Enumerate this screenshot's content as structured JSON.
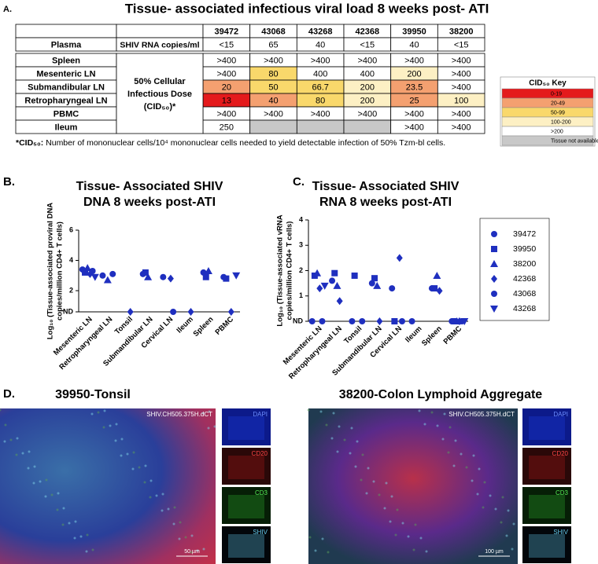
{
  "panel_a": {
    "label": "A.",
    "title": "Tissue- associated infectious viral load 8 weeks post- ATI",
    "table": {
      "header": [
        "39472",
        "43068",
        "43268",
        "42368",
        "39950",
        "38200"
      ],
      "plasma": {
        "tissue": "Plasma",
        "measure": "SHIV RNA copies/ml",
        "cells": [
          "<15",
          "65",
          "40",
          "<15",
          "40",
          "<15"
        ]
      },
      "measure": "50% Cellular Infectious Dose (CID₅₀)*",
      "rows": [
        {
          "tissue": "Spleen",
          "cells": [
            ">400",
            ">400",
            ">400",
            ">400",
            ">400",
            ">400"
          ],
          "colors": [
            "#ffffff",
            "#ffffff",
            "#ffffff",
            "#ffffff",
            "#ffffff",
            "#ffffff"
          ]
        },
        {
          "tissue": "Mesenteric LN",
          "cells": [
            ">400",
            "80",
            "400",
            "400",
            "200",
            ">400"
          ],
          "colors": [
            "#ffffff",
            "#f9d86b",
            "#ffffff",
            "#ffffff",
            "#fdf0c4",
            "#ffffff"
          ]
        },
        {
          "tissue": "Submandibular LN",
          "cells": [
            "20",
            "50",
            "66.7",
            "200",
            "23.5",
            ">400"
          ],
          "colors": [
            "#f4a070",
            "#f9d86b",
            "#f9d86b",
            "#fdf0c4",
            "#f4a070",
            "#ffffff"
          ]
        },
        {
          "tissue": "Retropharyngeal LN",
          "cells": [
            "13",
            "40",
            "80",
            "200",
            "25",
            "100"
          ],
          "colors": [
            "#e41a1c",
            "#f4a070",
            "#f9d86b",
            "#fdf0c4",
            "#f4a070",
            "#fdf0c4"
          ]
        },
        {
          "tissue": "PBMC",
          "cells": [
            ">400",
            ">400",
            ">400",
            ">400",
            ">400",
            ">400"
          ],
          "colors": [
            "#ffffff",
            "#ffffff",
            "#ffffff",
            "#ffffff",
            "#ffffff",
            "#ffffff"
          ]
        },
        {
          "tissue": "Ileum",
          "cells": [
            "250",
            null,
            null,
            null,
            ">400",
            ">400"
          ],
          "colors": [
            "#ffffff",
            "#c8c8c8",
            "#c8c8c8",
            "#c8c8c8",
            "#ffffff",
            "#ffffff"
          ]
        }
      ]
    },
    "footnote_term": "*CID₅₀:",
    "footnote": "Number of mononuclear cells/10⁴ mononuclear cells needed to yield detectable infection of 50% Tzm-bl cells.",
    "key": {
      "title": "CID₅₀ Key",
      "entries": [
        "0-19",
        "20-49",
        "50-99",
        "100-200",
        ">200",
        "Tissue not available"
      ],
      "colors": [
        "#e41a1c",
        "#f4a070",
        "#f9d86b",
        "#fdf0c4",
        "#ffffff",
        "#c8c8c8"
      ]
    }
  },
  "chart_data": [
    {
      "type": "scatter",
      "label": "B.",
      "title": [
        "Tissue- Associated SHIV",
        "DNA 8 weeks post-ATI"
      ],
      "ylabel": [
        "Log₁₀ (Tissue-associated proviral DNA",
        "copies/million CD4+ T cells)"
      ],
      "categories": [
        "Mesenteric LN",
        "Retropharyngeal LN",
        "Tonsil",
        "Submandibular LN",
        "Cervical LN",
        "Ileum",
        "Spleen",
        "PBMC"
      ],
      "ylim": [
        0.6,
        6
      ],
      "yticks": [
        {
          "value": 0.6,
          "label": "ND"
        },
        2,
        4,
        6
      ],
      "series": [
        {
          "name": "39472",
          "color": "#1f2fbf",
          "marker": "circle",
          "values": [
            3.4,
            3.0,
            null,
            3.1,
            2.9,
            null,
            3.2,
            2.9
          ]
        },
        {
          "name": "39950",
          "color": "#1f2fbf",
          "marker": "square",
          "values": [
            3.2,
            null,
            null,
            3.2,
            null,
            null,
            2.9,
            2.8
          ]
        },
        {
          "name": "38200",
          "color": "#1f2fbf",
          "marker": "triangle",
          "values": [
            3.5,
            2.7,
            null,
            2.9,
            null,
            null,
            3.3,
            null
          ]
        },
        {
          "name": "42368",
          "color": "#1f2fbf",
          "marker": "diamond",
          "values": [
            3.1,
            null,
            0.6,
            null,
            2.8,
            0.6,
            null,
            0.6
          ]
        },
        {
          "name": "43068",
          "color": "#1f2fbf",
          "marker": "circle",
          "values": [
            3.3,
            3.1,
            null,
            null,
            0.6,
            null,
            null,
            null
          ]
        },
        {
          "name": "43268",
          "color": "#1f2fbf",
          "marker": "triangle-down",
          "values": [
            2.9,
            null,
            null,
            null,
            null,
            null,
            null,
            3.0
          ]
        }
      ]
    },
    {
      "type": "scatter",
      "label": "C.",
      "title": [
        "Tissue- Associated SHIV",
        "RNA 8 weeks post-ATI"
      ],
      "ylabel": [
        "Log₁₀ (Tissue-associated vRNA",
        "copies/million CD4+ T cells)"
      ],
      "categories": [
        "Mesenteric LN",
        "Retropharyngeal LN",
        "Tonsil",
        "Submandibular LN",
        "Cervical LN",
        "Ileum",
        "Spleen",
        "PBMC"
      ],
      "ylim": [
        0,
        4
      ],
      "yticks": [
        {
          "value": 0,
          "label": "ND"
        },
        1,
        2,
        3,
        4
      ],
      "legend": true,
      "series": [
        {
          "name": "39472",
          "color": "#1f2fbf",
          "marker": "circle",
          "values": [
            0,
            1.6,
            0,
            1.5,
            1.3,
            0,
            1.3,
            0
          ]
        },
        {
          "name": "39950",
          "color": "#1f2fbf",
          "marker": "square",
          "values": [
            1.8,
            1.9,
            1.8,
            1.7,
            0,
            null,
            1.3,
            0
          ]
        },
        {
          "name": "38200",
          "color": "#1f2fbf",
          "marker": "triangle",
          "values": [
            1.9,
            1.4,
            null,
            1.4,
            null,
            null,
            1.8,
            0
          ]
        },
        {
          "name": "42368",
          "color": "#1f2fbf",
          "marker": "diamond",
          "values": [
            1.3,
            0.8,
            null,
            0,
            2.5,
            null,
            1.2,
            0
          ]
        },
        {
          "name": "43068",
          "color": "#1f2fbf",
          "marker": "circle",
          "values": [
            0,
            null,
            0,
            null,
            0,
            null,
            null,
            0
          ]
        },
        {
          "name": "43268",
          "color": "#1f2fbf",
          "marker": "triangle-down",
          "values": [
            1.4,
            null,
            null,
            null,
            null,
            null,
            null,
            0
          ]
        }
      ]
    }
  ],
  "panel_d": {
    "label": "D.",
    "images": [
      {
        "title": "39950-Tonsil",
        "tag": "SHIV.CH505.375H.dCT",
        "scale": "50 µm",
        "channels": [
          "DAPI",
          "CD20",
          "CD3",
          "SHIV"
        ]
      },
      {
        "title": "38200-Colon Lymphoid Aggregate",
        "tag": "SHIV.CH505.375H.dCT",
        "scale": "100 µm",
        "channels": [
          "DAPI",
          "CD20",
          "CD3",
          "SHIV"
        ]
      }
    ]
  }
}
